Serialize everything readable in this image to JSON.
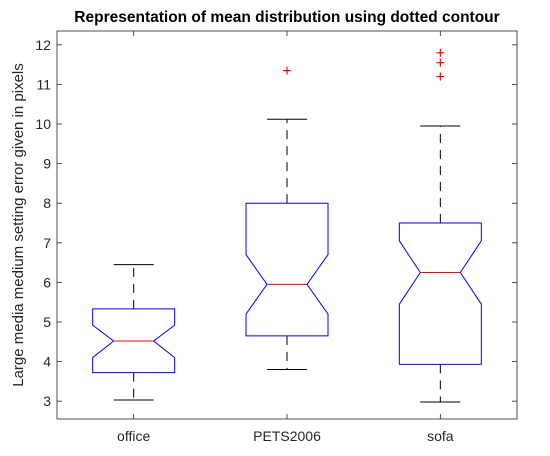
{
  "chart_data": {
    "type": "boxplot",
    "title": "Representation of mean distribution using dotted contour",
    "xlabel": "",
    "ylabel": "Large media medium setting error given in pixels",
    "ylim": [
      2.55,
      12.35
    ],
    "yticks": [
      3,
      4,
      5,
      6,
      7,
      8,
      9,
      10,
      11,
      12
    ],
    "grid": false,
    "notched": true,
    "colors": {
      "box": "#0000ff",
      "median": "#ff0000",
      "whisker": "#000000",
      "outlier": "#ff0000",
      "axis": "#262626"
    },
    "categories": [
      "office",
      "PETS2006",
      "sofa"
    ],
    "boxes": [
      {
        "label": "office",
        "whisker_low": 3.03,
        "q1": 3.72,
        "median": 4.52,
        "q3": 5.33,
        "whisker_high": 6.45,
        "notch_low": 4.1,
        "notch_high": 4.92,
        "outliers": []
      },
      {
        "label": "PETS2006",
        "whisker_low": 3.8,
        "q1": 4.65,
        "median": 5.95,
        "q3": 8.0,
        "whisker_high": 10.12,
        "notch_low": 5.2,
        "notch_high": 6.7,
        "outliers": [
          11.35
        ]
      },
      {
        "label": "sofa",
        "whisker_low": 2.98,
        "q1": 3.93,
        "median": 6.25,
        "q3": 7.5,
        "whisker_high": 9.95,
        "notch_low": 5.45,
        "notch_high": 7.05,
        "outliers": [
          11.2,
          11.55,
          11.8
        ]
      }
    ]
  }
}
